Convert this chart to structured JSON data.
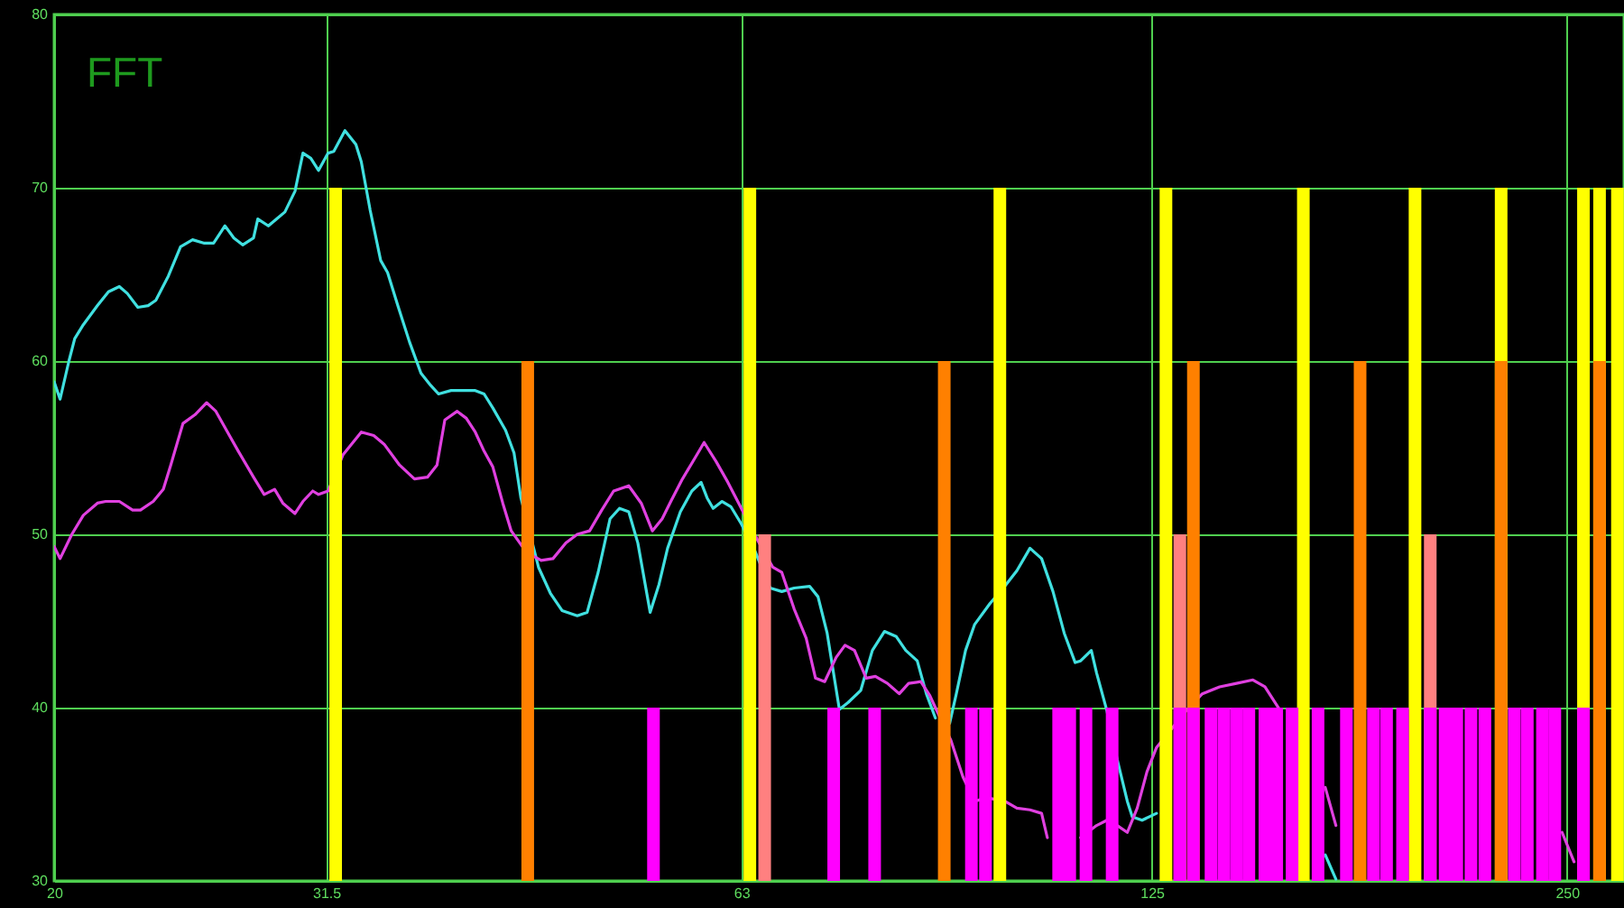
{
  "chart_data": {
    "type": "bar",
    "title": "FFT",
    "xlim": [
      20,
      275
    ],
    "ylim": [
      30,
      80
    ],
    "xticks": [
      20,
      31.5,
      63,
      125,
      250
    ],
    "yticks": [
      30,
      40,
      50,
      60,
      70,
      80
    ],
    "log": "x",
    "grid": true,
    "series": [
      {
        "type": "line",
        "color": "#40e0e0",
        "x": [
          20.0,
          20.2,
          20.5,
          20.7,
          21.0,
          21.5,
          21.9,
          22.3,
          22.6,
          23.0,
          23.4,
          23.7,
          24.2,
          24.7,
          25.2,
          25.7,
          26.1,
          26.6,
          27.0,
          27.4,
          27.9,
          28.1,
          28.6,
          29.0,
          29.4,
          29.9,
          30.3,
          30.7,
          31.1,
          31.6,
          31.9,
          32.5,
          33.1,
          33.4,
          33.9,
          34.5,
          34.9,
          35.5,
          36.2,
          36.9,
          37.5,
          38.0,
          38.8,
          39.6,
          40.4,
          41.0,
          41.6,
          42.5,
          43.1,
          43.6,
          44.9,
          45.8,
          46.7,
          47.9,
          48.7,
          49.6,
          50.6,
          51.4,
          52.2,
          53.0,
          54.1,
          54.9,
          55.7,
          56.9,
          58.0,
          58.9,
          59.5,
          60.1,
          61.0,
          61.9,
          63.0,
          64.4,
          66.1,
          67.4,
          68.8,
          70.6,
          71.6,
          72.7,
          74.2,
          75.3,
          76.9,
          78.4,
          80.0,
          81.6,
          82.9,
          84.5,
          85.8,
          87.1,
          88.0,
          89.2,
          90.2,
          91.6,
          93.0,
          95.4,
          97.8,
          99.8,
          102,
          104,
          106,
          108,
          110,
          111,
          113,
          114,
          116,
          118,
          120,
          121,
          123,
          126,
          142,
          167,
          170
        ],
        "values": [
          58.8,
          57.8,
          60.0,
          61.3,
          62.1,
          63.2,
          64.0,
          64.3,
          63.9,
          63.1,
          63.2,
          63.5,
          64.9,
          66.6,
          67.0,
          66.8,
          66.8,
          67.8,
          67.1,
          66.7,
          67.1,
          68.2,
          67.8,
          68.2,
          68.6,
          69.8,
          72.0,
          71.7,
          71.0,
          72.0,
          72.1,
          73.3,
          72.5,
          71.5,
          68.7,
          65.8,
          65.1,
          63.2,
          61.1,
          59.3,
          58.6,
          58.1,
          58.3,
          58.3,
          58.3,
          58.1,
          57.3,
          56.0,
          54.7,
          52.1,
          48.1,
          46.6,
          45.6,
          45.3,
          45.5,
          47.8,
          50.9,
          51.5,
          51.3,
          49.5,
          45.5,
          47.1,
          49.2,
          51.3,
          52.5,
          53.0,
          52.1,
          51.5,
          51.9,
          51.6,
          50.6,
          49.1,
          46.9,
          46.7,
          46.9,
          47.0,
          46.4,
          44.3,
          39.9,
          40.3,
          41.0,
          43.3,
          44.4,
          44.1,
          43.3,
          42.7,
          40.8,
          39.4,
          null,
          39.1,
          40.8,
          43.3,
          44.8,
          46.0,
          47.0,
          47.9,
          49.2,
          48.6,
          46.7,
          44.3,
          42.6,
          42.7,
          43.3,
          42.0,
          39.8,
          37.0,
          34.6,
          33.7,
          33.5,
          33.9,
          null,
          31.5,
          30.1
        ]
      },
      {
        "type": "line",
        "color": "#e040e0",
        "x": [
          20.0,
          20.2,
          20.6,
          21.0,
          21.5,
          21.8,
          22.3,
          22.8,
          23.1,
          23.6,
          24.0,
          24.3,
          24.8,
          25.3,
          25.8,
          26.2,
          26.8,
          27.2,
          27.9,
          28.4,
          28.9,
          29.3,
          29.9,
          30.3,
          30.8,
          31.1,
          31.6,
          32.4,
          33.4,
          34.1,
          34.7,
          35.6,
          36.5,
          37.3,
          37.9,
          38.4,
          39.2,
          39.8,
          40.4,
          41.0,
          41.6,
          42.3,
          42.9,
          43.7,
          44.4,
          45.1,
          46.0,
          47.0,
          47.9,
          48.9,
          49.9,
          50.9,
          52.2,
          53.3,
          54.3,
          55.2,
          56.0,
          57.1,
          58.3,
          59.2,
          60.4,
          61.6,
          62.9,
          64.8,
          66.4,
          67.4,
          68.8,
          70.2,
          71.3,
          72.4,
          73.8,
          74.9,
          76.1,
          77.6,
          78.8,
          80.4,
          82.0,
          83.3,
          85.0,
          86.3,
          87.1,
          89.4,
          91.2,
          93.0,
          94.9,
          97.8,
          99.8,
          102,
          104,
          105,
          108,
          111,
          114,
          116,
          118,
          120,
          122,
          124,
          126,
          132,
          136,
          140,
          144,
          148,
          151,
          155,
          160,
          167,
          170,
          198,
          248,
          253
        ],
        "values": [
          49.3,
          48.6,
          50.0,
          51.1,
          51.8,
          51.9,
          51.9,
          51.4,
          51.4,
          51.9,
          52.6,
          54.0,
          56.4,
          56.9,
          57.6,
          57.1,
          55.7,
          54.8,
          53.3,
          52.3,
          52.6,
          51.8,
          51.2,
          51.9,
          52.5,
          52.3,
          52.5,
          54.6,
          55.9,
          55.7,
          55.2,
          54.0,
          53.2,
          53.3,
          54.0,
          56.6,
          57.1,
          56.7,
          55.9,
          54.8,
          53.9,
          51.8,
          50.2,
          49.3,
          48.8,
          48.5,
          48.6,
          49.5,
          50.0,
          50.2,
          51.4,
          52.5,
          52.8,
          51.8,
          50.2,
          50.9,
          51.9,
          53.2,
          54.4,
          55.3,
          54.2,
          53.0,
          51.6,
          49.6,
          48.1,
          47.8,
          45.7,
          44.0,
          41.7,
          41.5,
          42.9,
          43.6,
          43.3,
          41.7,
          41.8,
          41.4,
          40.8,
          41.4,
          41.5,
          40.7,
          40.0,
          38.1,
          36.0,
          34.6,
          34.8,
          34.6,
          34.2,
          34.1,
          33.9,
          32.5,
          null,
          32.5,
          33.2,
          33.5,
          33.2,
          32.8,
          34.2,
          36.3,
          37.7,
          39.7,
          40.8,
          41.2,
          41.4,
          41.6,
          41.2,
          39.8,
          null,
          35.4,
          33.2,
          null,
          32.8,
          31.1
        ]
      },
      {
        "color": "#ffff00",
        "x": [
          32,
          63.9,
          97,
          128,
          161,
          194,
          224,
          257,
          264,
          272
        ],
        "values": [
          70,
          70,
          70,
          70,
          70,
          70,
          70,
          70,
          70,
          70
        ]
      },
      {
        "color": "#ff8000",
        "x": [
          44.1,
          88.4,
          134,
          177,
          224,
          264
        ],
        "values": [
          60,
          60,
          60,
          60,
          60,
          60
        ]
      },
      {
        "color": "#ff8080",
        "x": [
          65.5,
          131,
          199
        ],
        "values": [
          50,
          50,
          50
        ]
      },
      {
        "color": "#ff00ff",
        "x": [
          54.4,
          73.5,
          78.7,
          92.5,
          94.7,
          107,
          109,
          112,
          117,
          131,
          134,
          138,
          141,
          144,
          147,
          151,
          154,
          158,
          165,
          173,
          181,
          185,
          190,
          199,
          204,
          208,
          213,
          218,
          229,
          234,
          240,
          245,
          257
        ],
        "values": [
          40,
          40,
          40,
          40,
          40,
          40,
          40,
          40,
          40,
          40,
          40,
          40,
          40,
          40,
          40,
          40,
          40,
          40,
          40,
          40,
          40,
          40,
          40,
          40,
          40,
          40,
          40,
          40,
          40,
          40,
          40,
          40,
          40
        ]
      }
    ]
  }
}
